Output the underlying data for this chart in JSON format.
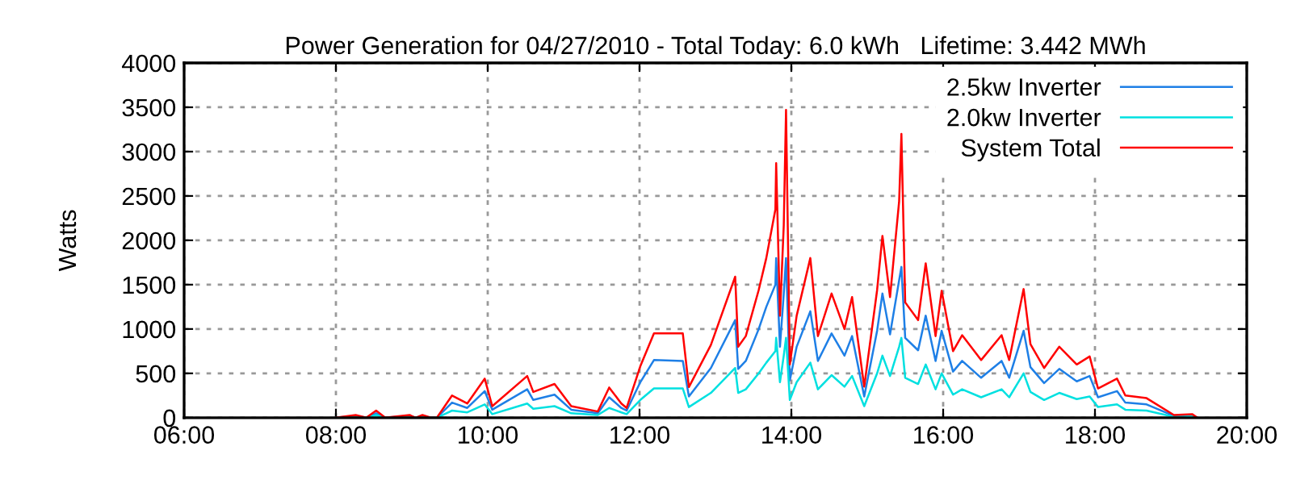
{
  "chart_data": {
    "type": "line",
    "title": "Power Generation for 04/27/2010 - Total Today: 6.0 kWh   Lifetime: 3.442 MWh",
    "ylabel": "Watts",
    "x": [
      8.0,
      8.26,
      8.4,
      8.53,
      8.65,
      8.97,
      9.05,
      9.14,
      9.25,
      9.33,
      9.53,
      9.73,
      9.96,
      10.06,
      10.52,
      10.6,
      10.88,
      11.1,
      11.45,
      11.6,
      11.76,
      11.83,
      12.01,
      12.19,
      12.57,
      12.65,
      12.94,
      13.26,
      13.3,
      13.4,
      13.57,
      13.67,
      13.79,
      13.8,
      13.85,
      13.9,
      13.93,
      13.98,
      14.07,
      14.25,
      14.35,
      14.53,
      14.7,
      14.8,
      14.96,
      15.13,
      15.2,
      15.3,
      15.42,
      15.45,
      15.5,
      15.67,
      15.77,
      15.9,
      15.98,
      16.13,
      16.25,
      16.5,
      16.77,
      16.87,
      17.06,
      17.15,
      17.33,
      17.53,
      17.76,
      17.93,
      18.04,
      18.29,
      18.4,
      18.68,
      19.04,
      19.28,
      19.35
    ],
    "series": [
      {
        "name": "2.5kw Inverter",
        "color": "#1e7fe6",
        "values": [
          0,
          20,
          0,
          50,
          0,
          20,
          0,
          20,
          0,
          0,
          170,
          110,
          300,
          90,
          320,
          200,
          260,
          90,
          50,
          230,
          110,
          80,
          400,
          650,
          640,
          240,
          560,
          1100,
          550,
          640,
          1000,
          1250,
          1500,
          1800,
          800,
          1400,
          1800,
          420,
          800,
          1200,
          640,
          950,
          700,
          920,
          240,
          980,
          1400,
          940,
          1550,
          1700,
          900,
          760,
          1150,
          640,
          980,
          520,
          640,
          450,
          640,
          450,
          980,
          570,
          390,
          550,
          410,
          470,
          230,
          300,
          170,
          150,
          20,
          25,
          0
        ]
      },
      {
        "name": "2.0kw Inverter",
        "color": "#00e0e0",
        "values": [
          0,
          10,
          0,
          30,
          0,
          10,
          0,
          10,
          0,
          0,
          80,
          60,
          150,
          40,
          160,
          100,
          130,
          50,
          30,
          110,
          60,
          40,
          200,
          330,
          330,
          120,
          280,
          560,
          280,
          320,
          500,
          620,
          750,
          900,
          400,
          700,
          900,
          200,
          400,
          620,
          320,
          480,
          350,
          470,
          130,
          500,
          700,
          470,
          800,
          900,
          450,
          380,
          600,
          320,
          500,
          260,
          320,
          230,
          320,
          230,
          500,
          290,
          200,
          280,
          210,
          240,
          120,
          150,
          90,
          80,
          10,
          15,
          0
        ]
      },
      {
        "name": "System Total",
        "color": "#ff0000",
        "values": [
          0,
          30,
          0,
          80,
          0,
          30,
          0,
          30,
          0,
          0,
          250,
          160,
          440,
          130,
          470,
          290,
          380,
          130,
          70,
          340,
          160,
          110,
          580,
          950,
          950,
          345,
          820,
          1590,
          800,
          920,
          1440,
          1800,
          2350,
          2870,
          1150,
          2170,
          3470,
          600,
          1150,
          1800,
          920,
          1400,
          1000,
          1360,
          350,
          1440,
          2050,
          1360,
          2440,
          3200,
          1300,
          1100,
          1740,
          920,
          1430,
          750,
          930,
          650,
          930,
          650,
          1450,
          830,
          560,
          800,
          600,
          690,
          330,
          440,
          250,
          220,
          30,
          40,
          0
        ]
      }
    ],
    "xlim": [
      6,
      20
    ],
    "xticks": [
      {
        "value": 6,
        "label": "06:00"
      },
      {
        "value": 8,
        "label": "08:00"
      },
      {
        "value": 10,
        "label": "10:00"
      },
      {
        "value": 12,
        "label": "12:00"
      },
      {
        "value": 14,
        "label": "14:00"
      },
      {
        "value": 16,
        "label": "16:00"
      },
      {
        "value": 18,
        "label": "18:00"
      },
      {
        "value": 20,
        "label": "20:00"
      }
    ],
    "ylim": [
      0,
      4000
    ],
    "yticks": [
      0,
      500,
      1000,
      1500,
      2000,
      2500,
      3000,
      3500,
      4000
    ],
    "grid": true,
    "legend": "top right",
    "line_style": "solid",
    "marker": "none"
  }
}
